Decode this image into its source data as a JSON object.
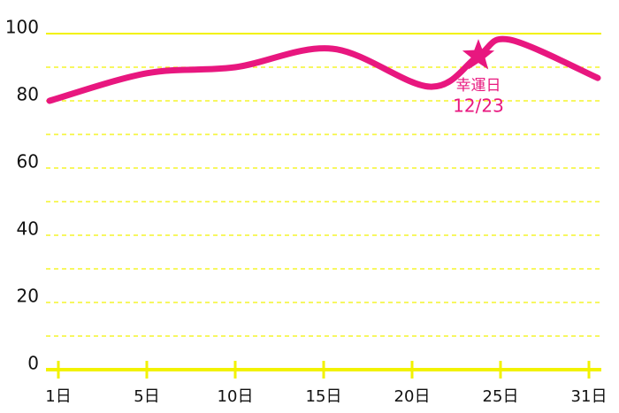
{
  "chart_data": {
    "type": "line",
    "x": [
      -0.5,
      5,
      10,
      15.5,
      21,
      23.75,
      25.5,
      30.5
    ],
    "series": [
      {
        "color": "#e8177f",
        "values": [
          80,
          88.2,
          90,
          95.5,
          84.2,
          93.4,
          98.2,
          86.8
        ]
      }
    ],
    "xlim": [
      -0.5,
      30.5
    ],
    "xticks": [
      {
        "value": 0,
        "label": "1日"
      },
      {
        "value": 5,
        "label": "5日"
      },
      {
        "value": 10,
        "label": "10日"
      },
      {
        "value": 15,
        "label": "15日"
      },
      {
        "value": 20,
        "label": "20日"
      },
      {
        "value": 25,
        "label": "25日"
      },
      {
        "value": 30,
        "label": "31日"
      }
    ],
    "ylim": [
      0,
      100
    ],
    "yticks": [
      0,
      20,
      40,
      60,
      80,
      100
    ],
    "yminor": [
      10,
      30,
      50,
      70,
      90
    ],
    "grid": true,
    "grid_color": "#f2f200",
    "annotation": {
      "x": 23.75,
      "y": 93.4,
      "lines": [
        "幸運日",
        "12/23"
      ],
      "color": "#e8177f"
    }
  }
}
